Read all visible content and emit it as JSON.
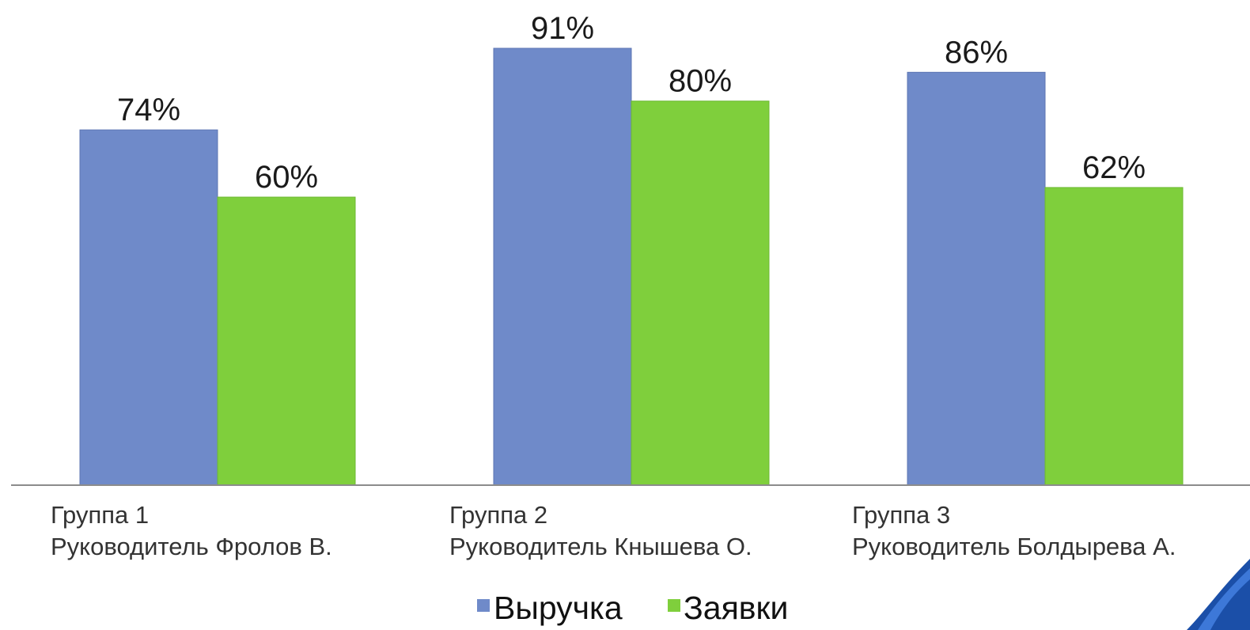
{
  "chart_data": {
    "type": "bar",
    "categories": [
      [
        "Группа 1",
        "Руководитель Фролов В."
      ],
      [
        "Группа 2",
        "Руководитель Кнышева О."
      ],
      [
        "Группа 3",
        "Руководитель Болдырева А."
      ]
    ],
    "series": [
      {
        "name": "Выручка",
        "values": [
          74,
          91,
          86
        ],
        "labels": [
          "74%",
          "91%",
          "86%"
        ],
        "color": "#6f8ac9"
      },
      {
        "name": "Заявки",
        "values": [
          60,
          80,
          62
        ],
        "labels": [
          "60%",
          "80%",
          "62%"
        ],
        "color": "#7fcf3c"
      }
    ],
    "ylim": [
      0,
      100
    ],
    "grid": false,
    "legend_position": "bottom-center",
    "title": "",
    "xlabel": "",
    "ylabel": ""
  }
}
